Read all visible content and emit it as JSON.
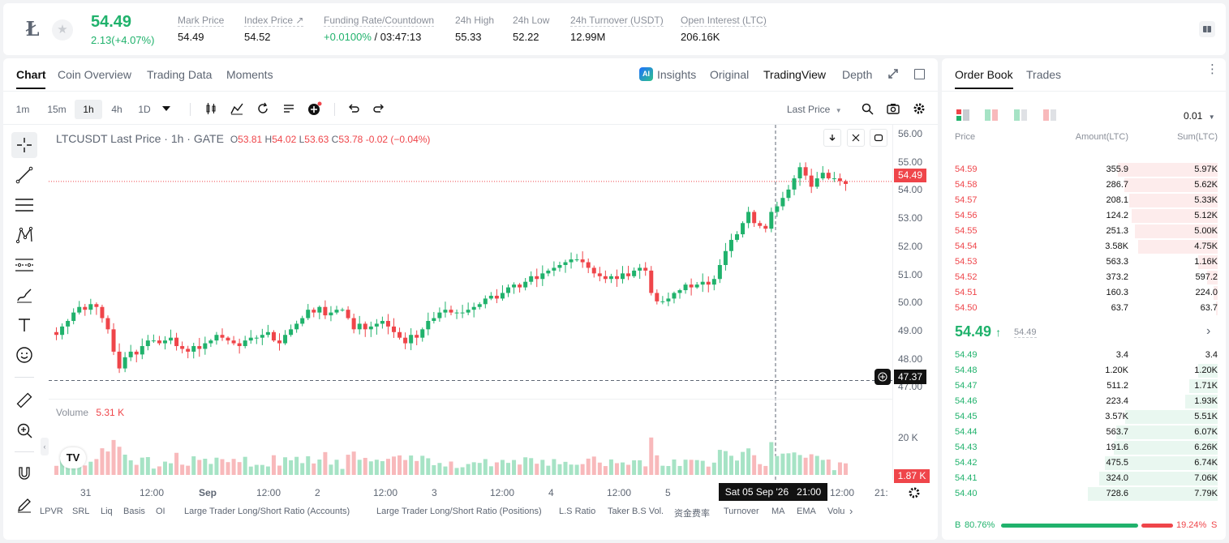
{
  "ticker": {
    "logo_glyph": "Ł",
    "price": "54.49",
    "change": "2.13(+4.07%)",
    "stats": [
      {
        "label": "Mark Price",
        "value": "54.49"
      },
      {
        "label": "Index Price ↗",
        "value": "54.52"
      },
      {
        "label": "Funding Rate/Countdown",
        "value_green": "+0.0100%",
        "value": "/ 03:47:13"
      },
      {
        "label": "24h High",
        "value": "55.33"
      },
      {
        "label": "24h Low",
        "value": "52.22"
      },
      {
        "label": "24h Turnover (USDT)",
        "value": "12.99M"
      },
      {
        "label": "Open Interest (LTC)",
        "value": "206.16K"
      }
    ]
  },
  "chart_tabs": [
    "Chart",
    "Coin Overview",
    "Trading Data",
    "Moments"
  ],
  "chart_tabs_right": {
    "insights": "Insights",
    "original": "Original",
    "tradingview": "TradingView",
    "depth": "Depth"
  },
  "toolbar": {
    "intervals": [
      "1m",
      "15m",
      "1h",
      "4h",
      "1D"
    ],
    "active_interval": "1h",
    "price_type": "Last Price"
  },
  "legend": {
    "symbol": "LTCUSDT Last Price · 1h · GATE",
    "o_label": "O",
    "o": "53.81",
    "h_label": "H",
    "h": "54.02",
    "l_label": "L",
    "l": "53.63",
    "c_label": "C",
    "c": "53.78",
    "change": "-0.02 (−0.04%)"
  },
  "volume_legend": {
    "label": "Volume",
    "value": "5.31 K"
  },
  "price_axis": [
    "56.00",
    "55.00",
    "54.00",
    "53.00",
    "52.00",
    "51.00",
    "50.00",
    "49.00",
    "48.00",
    "47.00"
  ],
  "price_badge": "54.49",
  "crosshair_badge": "47.37",
  "volume_axis": "20 K",
  "volume_badge": "1.87 K",
  "time_axis": [
    "31",
    "12:00",
    "Sep",
    "12:00",
    "2",
    "12:00",
    "3",
    "12:00",
    "4",
    "12:00",
    "5",
    "12:00",
    "21:"
  ],
  "crosshair_time": "Sat 05 Sep '26   21:00",
  "indicators": [
    "LPVR",
    "SRL",
    "Liq",
    "Basis",
    "OI",
    "Large Trader Long/Short Ratio (Accounts)",
    "Large Trader Long/Short Ratio (Positions)",
    "L.S Ratio",
    "Taker B.S Vol.",
    "资金费率",
    "Turnover",
    "MA",
    "EMA",
    "Volu"
  ],
  "chart_data": {
    "type": "candlestick",
    "title": "LTCUSDT Last Price · 1h · GATE",
    "xlabel": "",
    "ylabel": "",
    "ylim": [
      47.0,
      56.0
    ],
    "closes": [
      49.0,
      49.3,
      49.5,
      49.8,
      50.0,
      49.9,
      50.1,
      50.0,
      49.6,
      49.2,
      48.4,
      47.8,
      48.2,
      48.4,
      48.3,
      48.6,
      48.8,
      48.8,
      48.7,
      48.8,
      48.9,
      48.6,
      48.5,
      48.4,
      48.6,
      48.5,
      48.7,
      48.8,
      49.0,
      48.9,
      48.8,
      48.7,
      48.6,
      48.8,
      48.9,
      48.9,
      49.0,
      49.1,
      48.8,
      48.7,
      49.0,
      49.2,
      49.4,
      49.6,
      49.9,
      49.8,
      50.0,
      49.7,
      49.8,
      49.9,
      49.9,
      49.6,
      49.2,
      49.4,
      49.2,
      49.3,
      49.4,
      49.5,
      49.3,
      49.1,
      48.9,
      48.7,
      49.0,
      48.9,
      49.2,
      49.5,
      49.6,
      49.8,
      49.9,
      49.8,
      49.8,
      49.8,
      49.9,
      50.0,
      50.1,
      50.3,
      50.4,
      50.3,
      50.5,
      50.7,
      50.8,
      50.7,
      50.9,
      51.1,
      51.0,
      51.2,
      51.3,
      51.4,
      51.5,
      51.6,
      51.7,
      51.7,
      51.6,
      51.4,
      51.2,
      51.1,
      51.0,
      51.1,
      51.0,
      51.2,
      51.1,
      51.3,
      51.4,
      51.3,
      50.5,
      50.2,
      50.2,
      50.3,
      50.5,
      50.6,
      50.8,
      50.7,
      50.8,
      50.9,
      50.8,
      51.0,
      51.5,
      52.0,
      52.4,
      52.6,
      53.0,
      53.4,
      53.0,
      52.9,
      52.8,
      53.4,
      53.6,
      53.9,
      54.2,
      54.6,
      55.0,
      54.7,
      54.3,
      54.6,
      54.8,
      54.6,
      54.6,
      54.5,
      54.4
    ]
  },
  "order_book": {
    "tabs": [
      "Order Book",
      "Trades"
    ],
    "tick": "0.01",
    "headers": {
      "price": "Price",
      "amount": "Amount(LTC)",
      "sum": "Sum(LTC)"
    },
    "asks": [
      {
        "price": "54.59",
        "amount": "355.9",
        "sum": "5.97K",
        "depth": 0.77
      },
      {
        "price": "54.58",
        "amount": "286.7",
        "sum": "5.62K",
        "depth": 0.72
      },
      {
        "price": "54.57",
        "amount": "208.1",
        "sum": "5.33K",
        "depth": 0.68
      },
      {
        "price": "54.56",
        "amount": "124.2",
        "sum": "5.12K",
        "depth": 0.66
      },
      {
        "price": "54.55",
        "amount": "251.3",
        "sum": "5.00K",
        "depth": 0.64
      },
      {
        "price": "54.54",
        "amount": "3.58K",
        "sum": "4.75K",
        "depth": 0.61
      },
      {
        "price": "54.53",
        "amount": "563.3",
        "sum": "1.16K",
        "depth": 0.15
      },
      {
        "price": "54.52",
        "amount": "373.2",
        "sum": "597.2",
        "depth": 0.08
      },
      {
        "price": "54.51",
        "amount": "160.3",
        "sum": "224.0",
        "depth": 0.03
      },
      {
        "price": "54.50",
        "amount": "63.7",
        "sum": "63.7",
        "depth": 0.01
      }
    ],
    "mid_price": "54.49",
    "mid_arrow": "↑",
    "mid_mark": "54.49",
    "bids": [
      {
        "price": "54.49",
        "amount": "3.4",
        "sum": "3.4",
        "depth": 0.0
      },
      {
        "price": "54.48",
        "amount": "1.20K",
        "sum": "1.20K",
        "depth": 0.15
      },
      {
        "price": "54.47",
        "amount": "511.2",
        "sum": "1.71K",
        "depth": 0.22
      },
      {
        "price": "54.46",
        "amount": "223.4",
        "sum": "1.93K",
        "depth": 0.25
      },
      {
        "price": "54.45",
        "amount": "3.57K",
        "sum": "5.51K",
        "depth": 0.71
      },
      {
        "price": "54.44",
        "amount": "563.7",
        "sum": "6.07K",
        "depth": 0.78
      },
      {
        "price": "54.43",
        "amount": "191.6",
        "sum": "6.26K",
        "depth": 0.8
      },
      {
        "price": "54.42",
        "amount": "475.5",
        "sum": "6.74K",
        "depth": 0.87
      },
      {
        "price": "54.41",
        "amount": "324.0",
        "sum": "7.06K",
        "depth": 0.91
      },
      {
        "price": "54.40",
        "amount": "728.6",
        "sum": "7.79K",
        "depth": 1.0
      }
    ],
    "buy_label": "B",
    "buy_pct": "80.76%",
    "buy_ratio": 0.8076,
    "sell_pct": "19.24%",
    "sell_label": "S"
  },
  "colors": {
    "up": "#20b26c",
    "down": "#ef454a",
    "up_light": "#e9f7f0",
    "down_light": "#fdecec"
  }
}
